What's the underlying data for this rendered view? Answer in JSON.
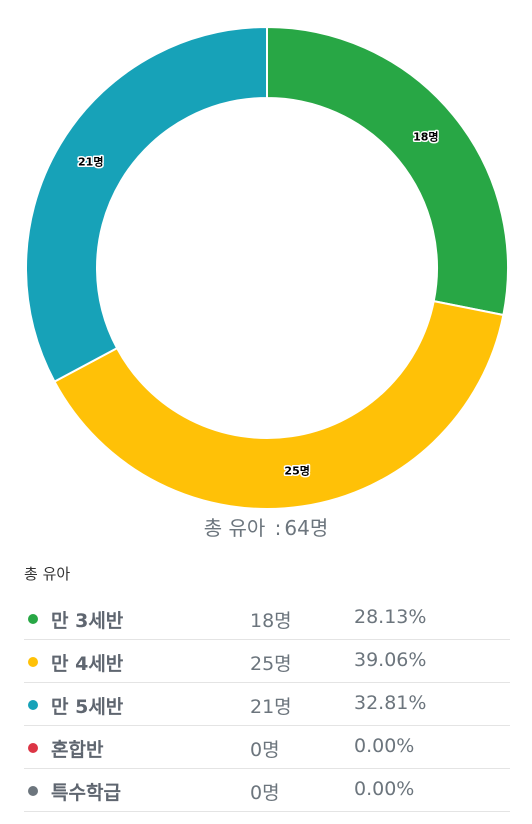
{
  "chart_data": {
    "type": "pie",
    "categories": [
      "만 3세반",
      "만 4세반",
      "만 5세반",
      "혼합반",
      "특수학급"
    ],
    "values": [
      18,
      25,
      21,
      0,
      0
    ],
    "data_labels": [
      "18명",
      "25명",
      "21명",
      "0명",
      "0명"
    ],
    "percentages": [
      "28.13%",
      "39.06%",
      "32.81%",
      "0.00%",
      "0.00%"
    ],
    "colors": [
      "#28a745",
      "#ffc107",
      "#17a2b8",
      "#dc3545",
      "#6c757d"
    ],
    "donut": true,
    "legend": "bottom"
  },
  "caption": {
    "label": "총 유아",
    "colon": ":",
    "total": "64명"
  },
  "summary": {
    "title": "총 유아",
    "rows": [
      {
        "name": "만 3세반",
        "count": "18명",
        "percent": "28.13%",
        "color": "#28a745"
      },
      {
        "name": "만 4세반",
        "count": "25명",
        "percent": "39.06%",
        "color": "#ffc107"
      },
      {
        "name": "만 5세반",
        "count": "21명",
        "percent": "32.81%",
        "color": "#17a2b8"
      },
      {
        "name": "혼합반",
        "count": "0명",
        "percent": "0.00%",
        "color": "#dc3545"
      },
      {
        "name": "특수학급",
        "count": "0명",
        "percent": "0.00%",
        "color": "#6c757d"
      }
    ]
  }
}
